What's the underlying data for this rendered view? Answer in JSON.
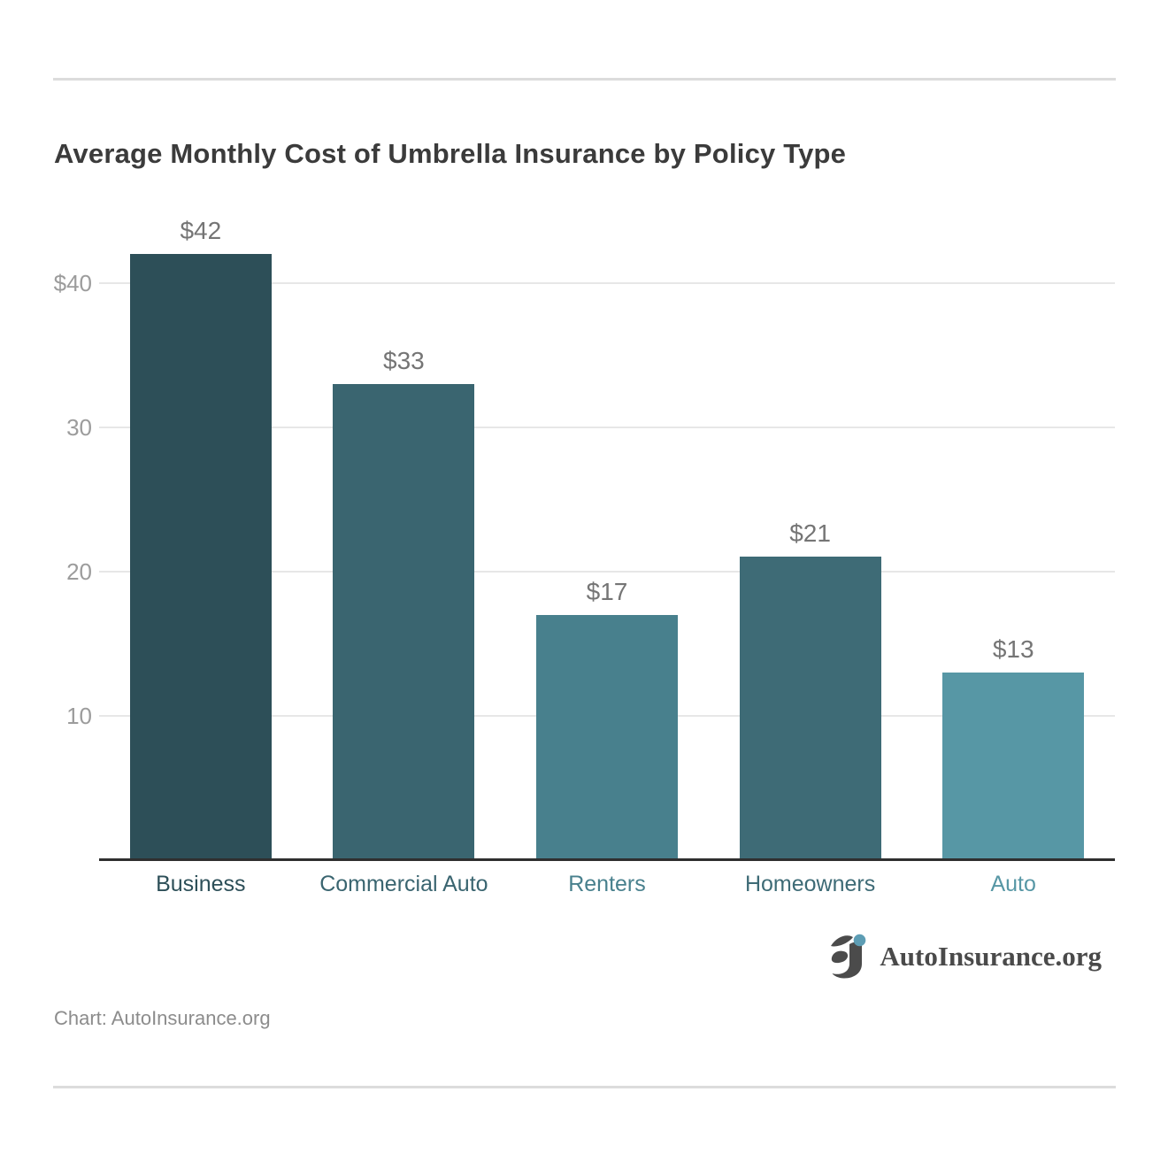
{
  "chart_data": {
    "type": "bar",
    "title": "Average Monthly Cost of Umbrella Insurance by Policy Type",
    "categories": [
      "Business",
      "Commercial Auto",
      "Renters",
      "Homeowners",
      "Auto"
    ],
    "values": [
      42,
      33,
      17,
      21,
      13
    ],
    "value_labels": [
      "$42",
      "$33",
      "$17",
      "$21",
      "$13"
    ],
    "bar_colors": [
      "#2d4f58",
      "#3a6570",
      "#48808d",
      "#3e6b76",
      "#5797a5"
    ],
    "xlabel": "",
    "ylabel": "",
    "ylim": [
      0,
      46
    ],
    "yticks": [
      {
        "value": 40,
        "label": "$40"
      },
      {
        "value": 30,
        "label": "30"
      },
      {
        "value": 20,
        "label": "20"
      },
      {
        "value": 10,
        "label": "10"
      }
    ],
    "grid": "horizontal-only",
    "legend": "none",
    "axis_line_color": "#2f2f2f",
    "gridline_color": "#e7e7e7",
    "value_label_color": "#757575",
    "ytick_color": "#9c9c9c"
  },
  "footer": {
    "logo_text": "AutoInsurance.org",
    "logo_icon": "autoinsurance-ai-monogram",
    "logo_text_color": "#4a4a4a",
    "logo_dot_color": "#5d9db4",
    "logo_mark_color": "#4b4b4b",
    "credit": "Chart: AutoInsurance.org"
  }
}
